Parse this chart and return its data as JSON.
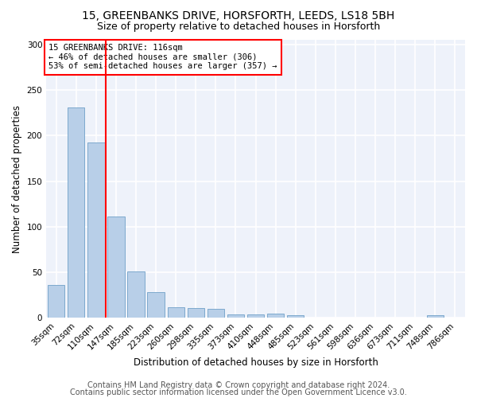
{
  "title1": "15, GREENBANKS DRIVE, HORSFORTH, LEEDS, LS18 5BH",
  "title2": "Size of property relative to detached houses in Horsforth",
  "xlabel": "Distribution of detached houses by size in Horsforth",
  "ylabel": "Number of detached properties",
  "bar_labels": [
    "35sqm",
    "72sqm",
    "110sqm",
    "147sqm",
    "185sqm",
    "223sqm",
    "260sqm",
    "298sqm",
    "335sqm",
    "373sqm",
    "410sqm",
    "448sqm",
    "485sqm",
    "523sqm",
    "561sqm",
    "598sqm",
    "636sqm",
    "673sqm",
    "711sqm",
    "748sqm",
    "786sqm"
  ],
  "bar_values": [
    36,
    231,
    192,
    111,
    51,
    28,
    12,
    11,
    10,
    4,
    4,
    5,
    3,
    0,
    0,
    0,
    0,
    0,
    0,
    3,
    0
  ],
  "bar_color": "#b8cfe8",
  "bar_edge_color": "#6fa0c8",
  "annotation_line1": "15 GREENBANKS DRIVE: 116sqm",
  "annotation_line2": "← 46% of detached houses are smaller (306)",
  "annotation_line3": "53% of semi-detached houses are larger (357) →",
  "annotation_box_color": "white",
  "annotation_box_edgecolor": "red",
  "vline_color": "red",
  "vline_x": 2.5,
  "ylim": [
    0,
    305
  ],
  "yticks": [
    0,
    50,
    100,
    150,
    200,
    250,
    300
  ],
  "background_color": "#eef2fa",
  "grid_color": "white",
  "title1_fontsize": 10,
  "title2_fontsize": 9,
  "xlabel_fontsize": 8.5,
  "ylabel_fontsize": 8.5,
  "tick_fontsize": 7.5,
  "footer_fontsize": 7,
  "footer1": "Contains HM Land Registry data © Crown copyright and database right 2024.",
  "footer2": "Contains public sector information licensed under the Open Government Licence v3.0."
}
